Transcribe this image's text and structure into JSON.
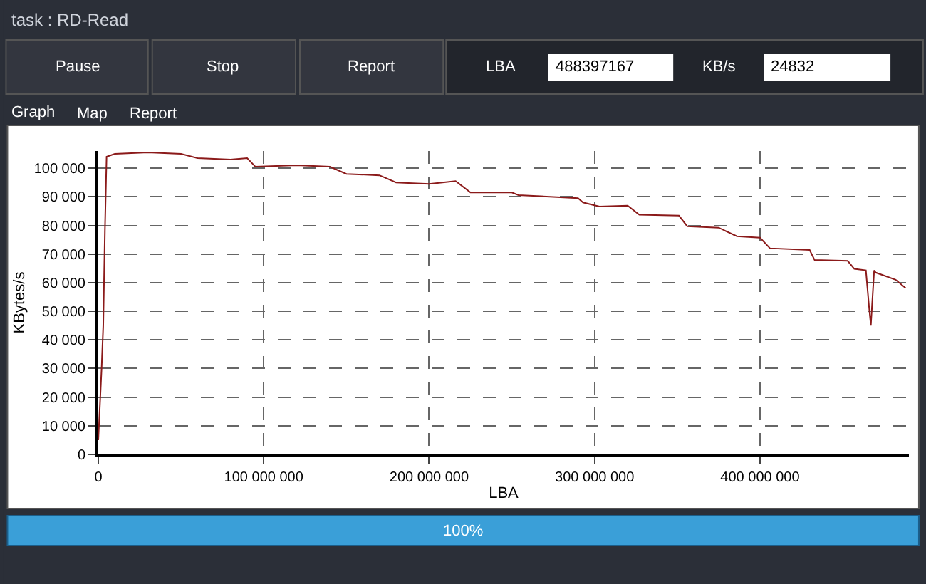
{
  "chart_data": {
    "type": "line",
    "title": "task : RD-Read",
    "xlabel": "LBA",
    "ylabel": "KBytes/s",
    "x": [
      0,
      2000000,
      3000000,
      4000000,
      5000000,
      10000000,
      30000000,
      50000000,
      60000000,
      80000000,
      90000000,
      95000000,
      120000000,
      140000000,
      150000000,
      170000000,
      180000000,
      200000000,
      216000000,
      225000000,
      250000000,
      254000000,
      290000000,
      293000000,
      303000000,
      320000000,
      327000000,
      351000000,
      356000000,
      375000000,
      386000000,
      400000000,
      406000000,
      430000000,
      433000000,
      453000000,
      457000000,
      464000000,
      466000000,
      467000000,
      469000000,
      470000000,
      482000000,
      488000000
    ],
    "series": [
      {
        "color": "#8b1a1a",
        "values": [
          5000,
          30000,
          45000,
          78000,
          104000,
          105000,
          105500,
          105000,
          103500,
          103000,
          103500,
          100500,
          101000,
          100500,
          98000,
          97500,
          95000,
          94500,
          95500,
          91500,
          91500,
          90600,
          89500,
          88000,
          86600,
          86900,
          83700,
          83400,
          79700,
          79200,
          76200,
          75700,
          72000,
          71400,
          67900,
          67600,
          64800,
          64300,
          51000,
          45000,
          64300,
          63500,
          61000,
          58100
        ]
      }
    ],
    "xlim": [
      0,
      490000000
    ],
    "ylim": [
      0,
      106000
    ],
    "xticks": [
      0,
      {
        "value": 100000000,
        "label": "100 000 000"
      },
      {
        "value": 200000000,
        "label": "200 000 000"
      },
      {
        "value": 300000000,
        "label": "300 000 000"
      },
      {
        "value": 400000000,
        "label": "400 000 000"
      }
    ],
    "yticks": [
      0,
      {
        "value": 10000,
        "label": "10 000"
      },
      {
        "value": 20000,
        "label": "20 000"
      },
      {
        "value": 30000,
        "label": "30 000"
      },
      {
        "value": 40000,
        "label": "40 000"
      },
      {
        "value": 50000,
        "label": "50 000"
      },
      {
        "value": 60000,
        "label": "60 000"
      },
      {
        "value": 70000,
        "label": "70 000"
      },
      {
        "value": 80000,
        "label": "80 000"
      },
      {
        "value": 90000,
        "label": "90 000"
      },
      {
        "value": 100000,
        "label": "100 000"
      }
    ],
    "grid": true,
    "line_style": "solid",
    "marker": "none",
    "legend": false,
    "annotations": [
      "Pause",
      "Stop",
      "Report",
      "LBA",
      "488397167",
      "KB/s",
      "24832",
      "Graph",
      "Map",
      "Report",
      "100%"
    ]
  }
}
